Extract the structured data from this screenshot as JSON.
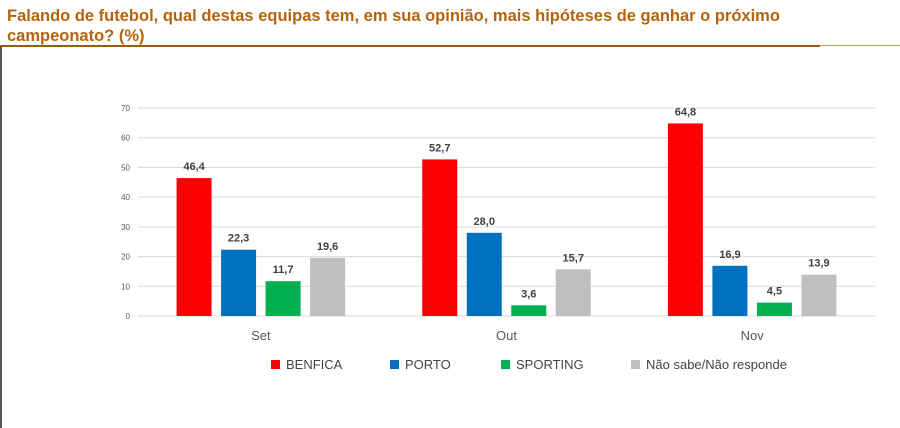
{
  "title": "Falando de futebol, qual destas equipas tem, em sua opinião, mais hipóteses de ganhar o próximo campeonato? (%)",
  "chart_data": {
    "type": "bar",
    "categories": [
      "Set",
      "Out",
      "Nov"
    ],
    "series": [
      {
        "name": "BENFICA",
        "color": "#FF0000",
        "values": [
          46.4,
          52.7,
          64.8
        ],
        "labels": [
          "46,4",
          "52,7",
          "64,8"
        ]
      },
      {
        "name": "PORTO",
        "color": "#0070C0",
        "values": [
          22.3,
          28.0,
          16.9
        ],
        "labels": [
          "22,3",
          "28,0",
          "16,9"
        ]
      },
      {
        "name": "SPORTING",
        "color": "#00B050",
        "values": [
          11.7,
          3.6,
          4.5
        ],
        "labels": [
          "11,7",
          "3,6",
          "4,5"
        ]
      },
      {
        "name": "Não sabe/Não responde",
        "color": "#BFBFBF",
        "values": [
          19.6,
          15.7,
          13.9
        ],
        "labels": [
          "19,6",
          "15,7",
          "13,9"
        ]
      }
    ],
    "yticks": [
      "0",
      "10",
      "20",
      "30",
      "40",
      "50",
      "60",
      "70"
    ],
    "ylim": [
      0,
      70
    ],
    "grid": true,
    "legend": "bottom"
  }
}
